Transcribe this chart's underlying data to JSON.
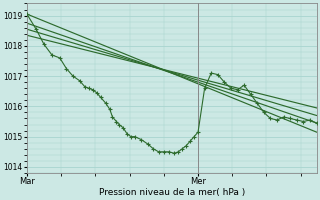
{
  "xlabel": "Pression niveau de la mer( hPa )",
  "bg_color": "#cce8e4",
  "grid_color": "#a8d4cf",
  "line_color": "#2d6b2d",
  "ylim": [
    1013.8,
    1019.4
  ],
  "yticks": [
    1014,
    1015,
    1016,
    1017,
    1018,
    1019
  ],
  "xlim_days": [
    0,
    2.2
  ],
  "mar_x": 0.0,
  "mer_x": 1.3,
  "vline_x": 1.3,
  "straight_lines": [
    {
      "x0": 0.0,
      "y0": 1019.05,
      "x1": 2.2,
      "y1": 1015.15
    },
    {
      "x0": 0.0,
      "y0": 1018.75,
      "x1": 2.2,
      "y1": 1015.45
    },
    {
      "x0": 0.0,
      "y0": 1018.55,
      "x1": 2.2,
      "y1": 1015.7
    },
    {
      "x0": 0.0,
      "y0": 1018.35,
      "x1": 2.2,
      "y1": 1015.95
    }
  ],
  "noisy_line": {
    "x_pts": [
      0.0,
      0.07,
      0.13,
      0.19,
      0.25,
      0.3,
      0.35,
      0.4,
      0.44,
      0.47,
      0.5,
      0.53,
      0.56,
      0.6,
      0.63,
      0.65,
      0.68,
      0.7,
      0.73,
      0.76,
      0.79,
      0.82,
      0.87,
      0.92,
      0.96,
      1.0,
      1.04,
      1.08,
      1.12,
      1.15,
      1.18,
      1.21,
      1.24,
      1.27,
      1.3,
      1.35,
      1.4,
      1.45,
      1.5,
      1.55,
      1.6,
      1.65,
      1.7,
      1.75,
      1.8,
      1.85,
      1.9,
      1.95,
      2.0,
      2.05,
      2.1,
      2.15,
      2.2
    ],
    "y_pts": [
      1019.05,
      1018.55,
      1018.05,
      1017.7,
      1017.6,
      1017.25,
      1017.0,
      1016.85,
      1016.65,
      1016.6,
      1016.55,
      1016.45,
      1016.3,
      1016.1,
      1015.9,
      1015.65,
      1015.5,
      1015.4,
      1015.3,
      1015.1,
      1015.0,
      1015.0,
      1014.9,
      1014.75,
      1014.6,
      1014.5,
      1014.5,
      1014.5,
      1014.45,
      1014.5,
      1014.6,
      1014.7,
      1014.85,
      1015.0,
      1015.15,
      1016.6,
      1017.1,
      1017.05,
      1016.8,
      1016.6,
      1016.55,
      1016.7,
      1016.4,
      1016.1,
      1015.8,
      1015.6,
      1015.55,
      1015.65,
      1015.6,
      1015.55,
      1015.5,
      1015.55,
      1015.45
    ]
  }
}
